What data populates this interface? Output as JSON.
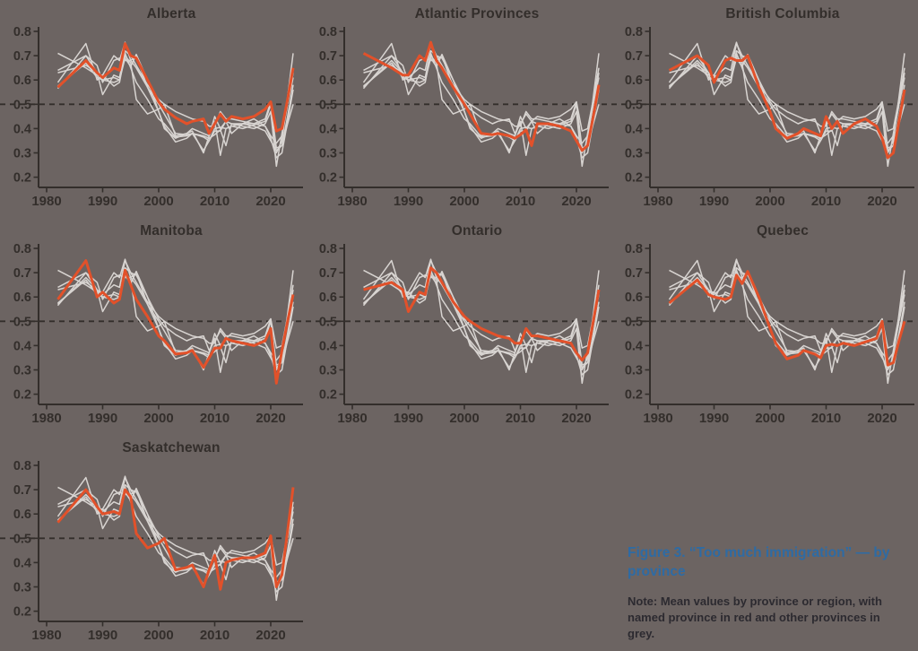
{
  "figure": {
    "caption": "Figure 3. “Too much immigration” — by province",
    "note": "Note: Mean values by province or region, with named province in red and other provinces in grey.",
    "caption_color": "#2e6ba4",
    "note_color": "#2c2a30",
    "background_color": "#6c6462"
  },
  "chart_data": {
    "type": "line",
    "title": "“Too much immigration” — by province",
    "layout": "small-multiples, 3 columns, shared axes, legend off",
    "panels": [
      "Alberta",
      "Atlantic Provinces",
      "British Columbia",
      "Manitoba",
      "Ontario",
      "Quebec",
      "Saskatchewan"
    ],
    "x": [
      1982,
      1987,
      1989,
      1990,
      1992,
      1993,
      1994,
      1995,
      1996,
      1998,
      2000,
      2001,
      2003,
      2005,
      2006,
      2008,
      2009,
      2010,
      2011,
      2012,
      2013,
      2015,
      2017,
      2019,
      2020,
      2021,
      2022,
      2023,
      2024
    ],
    "series": [
      {
        "name": "Alberta",
        "values": [
          0.57,
          0.68,
          0.63,
          0.61,
          0.65,
          0.64,
          0.75,
          0.7,
          0.69,
          0.6,
          0.51,
          0.48,
          0.445,
          0.42,
          0.43,
          0.44,
          0.38,
          0.42,
          0.46,
          0.43,
          0.45,
          0.44,
          0.45,
          0.48,
          0.51,
          0.39,
          0.4,
          0.52,
          0.65
        ]
      },
      {
        "name": "Atlantic Provinces",
        "values": [
          0.71,
          0.65,
          0.62,
          0.62,
          0.7,
          0.68,
          0.755,
          0.68,
          0.65,
          0.57,
          0.5,
          0.46,
          0.38,
          0.375,
          0.38,
          0.37,
          0.36,
          0.375,
          0.395,
          0.33,
          0.42,
          0.42,
          0.41,
          0.39,
          0.35,
          0.31,
          0.33,
          0.45,
          0.58
        ]
      },
      {
        "name": "British Columbia",
        "values": [
          0.64,
          0.7,
          0.66,
          0.59,
          0.68,
          0.69,
          0.68,
          0.68,
          0.7,
          0.57,
          0.47,
          0.4,
          0.36,
          0.38,
          0.4,
          0.38,
          0.37,
          0.45,
          0.4,
          0.43,
          0.38,
          0.42,
          0.44,
          0.41,
          0.36,
          0.28,
          0.3,
          0.43,
          0.56
        ]
      },
      {
        "name": "Manitoba",
        "values": [
          0.59,
          0.75,
          0.6,
          0.62,
          0.575,
          0.59,
          0.71,
          0.65,
          0.59,
          0.52,
          0.44,
          0.42,
          0.365,
          0.37,
          0.38,
          0.31,
          0.35,
          0.39,
          0.39,
          0.43,
          0.42,
          0.41,
          0.4,
          0.42,
          0.47,
          0.245,
          0.38,
          0.5,
          0.61
        ]
      },
      {
        "name": "Ontario",
        "values": [
          0.63,
          0.66,
          0.63,
          0.54,
          0.62,
          0.61,
          0.72,
          0.7,
          0.66,
          0.58,
          0.52,
          0.5,
          0.47,
          0.45,
          0.44,
          0.43,
          0.41,
          0.41,
          0.47,
          0.44,
          0.44,
          0.43,
          0.42,
          0.41,
          0.37,
          0.34,
          0.37,
          0.5,
          0.63
        ]
      },
      {
        "name": "Quebec",
        "values": [
          0.575,
          0.67,
          0.61,
          0.6,
          0.59,
          0.6,
          0.69,
          0.655,
          0.705,
          0.6,
          0.47,
          0.41,
          0.345,
          0.36,
          0.38,
          0.365,
          0.35,
          0.4,
          0.405,
          0.4,
          0.41,
          0.4,
          0.415,
          0.43,
          0.5,
          0.32,
          0.33,
          0.42,
          0.5
        ]
      },
      {
        "name": "Saskatchewan",
        "values": [
          0.565,
          0.7,
          0.63,
          0.6,
          0.61,
          0.6,
          0.7,
          0.67,
          0.52,
          0.46,
          0.48,
          0.5,
          0.37,
          0.38,
          0.39,
          0.3,
          0.37,
          0.43,
          0.29,
          0.4,
          0.41,
          0.42,
          0.42,
          0.44,
          0.51,
          0.3,
          0.35,
          0.53,
          0.71
        ]
      }
    ],
    "ylim": [
      0.2,
      0.8
    ],
    "yticks": [
      0.2,
      0.3,
      0.4,
      0.5,
      0.6,
      0.7,
      0.8
    ],
    "xticks": [
      1980,
      1990,
      2000,
      2010,
      2020
    ],
    "xlim": [
      1978,
      2026
    ],
    "reference_line": 0.5,
    "grid": false,
    "colors": {
      "highlight": "#e2512a",
      "other": "#d8d4d1",
      "axis": "#332e2b",
      "background": "#6c6462"
    }
  }
}
